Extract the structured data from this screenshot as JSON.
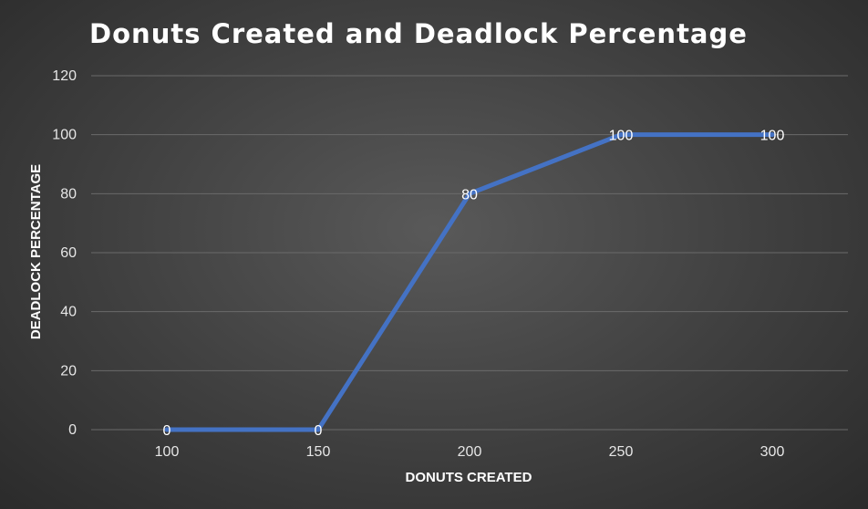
{
  "chart_data": {
    "type": "line",
    "title": "Donuts Created and Deadlock Percentage",
    "xlabel": "DONUTS CREATED",
    "ylabel": "DEADLOCK PERCENTAGE",
    "categories": [
      "100",
      "150",
      "200",
      "250",
      "300"
    ],
    "series": [
      {
        "name": "Deadlock Percentage",
        "values": [
          0,
          0,
          80,
          100,
          100
        ],
        "labels": [
          "0",
          "0",
          "80",
          "100",
          "100"
        ]
      }
    ],
    "ylim": [
      0,
      120
    ],
    "yticks": [
      "0",
      "20",
      "40",
      "60",
      "80",
      "100",
      "120"
    ],
    "grid": true,
    "legend": "none"
  },
  "colors": {
    "line": "#4472c4",
    "grid": "#6a6a6a",
    "text": "#ffffff"
  }
}
